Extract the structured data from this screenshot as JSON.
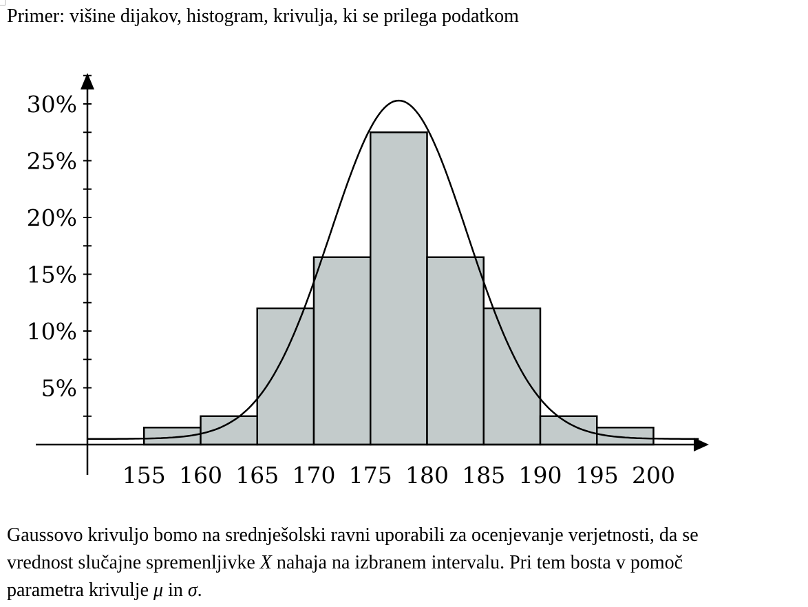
{
  "title": "Primer: višine dijakov, histogram, krivulja, ki se prilega podatkom",
  "chart_data": {
    "type": "bar",
    "subtype": "histogram with fitted normal curve",
    "bins": [
      {
        "from": 155,
        "to": 160,
        "value": 1.5
      },
      {
        "from": 160,
        "to": 165,
        "value": 2.5
      },
      {
        "from": 165,
        "to": 170,
        "value": 12
      },
      {
        "from": 170,
        "to": 175,
        "value": 16.5
      },
      {
        "from": 175,
        "to": 180,
        "value": 27.5
      },
      {
        "from": 180,
        "to": 185,
        "value": 16.5
      },
      {
        "from": 185,
        "to": 190,
        "value": 12
      },
      {
        "from": 190,
        "to": 195,
        "value": 2.5
      },
      {
        "from": 195,
        "to": 200,
        "value": 1.5
      }
    ],
    "curve": {
      "type": "normal",
      "mean": 177.5,
      "sd": 6.05,
      "peak": 29.8
    },
    "x_ticks": [
      "155",
      "160",
      "165",
      "170",
      "175",
      "180",
      "185",
      "190",
      "195",
      "200"
    ],
    "x_tick_values": [
      155,
      160,
      165,
      170,
      175,
      180,
      185,
      190,
      195,
      200
    ],
    "y_ticks": [
      "5%",
      "10%",
      "15%",
      "20%",
      "25%",
      "30%"
    ],
    "y_tick_values": [
      5,
      10,
      15,
      20,
      25,
      30
    ],
    "xlim": [
      150,
      204
    ],
    "ylim": [
      0,
      32
    ],
    "xlabel": "",
    "ylabel": "",
    "grid": false,
    "colors": {
      "bar_fill": "#c3cbcb",
      "stroke": "#000000"
    }
  },
  "paragraph": {
    "line1": "Gaussovo krivuljo bomo na srednješolski ravni uporabili za ocenjevanje verjetnosti, da se",
    "line2_a": "vrednost slučajne spremenljivke ",
    "line2_var": "X",
    "line2_b": " nahaja na izbranem intervalu. Pri tem bosta v pomoč",
    "line3_a": "parametra krivulje ",
    "line3_mu": "μ",
    "line3_b": " in ",
    "line3_sigma": "σ",
    "line3_c": "."
  }
}
